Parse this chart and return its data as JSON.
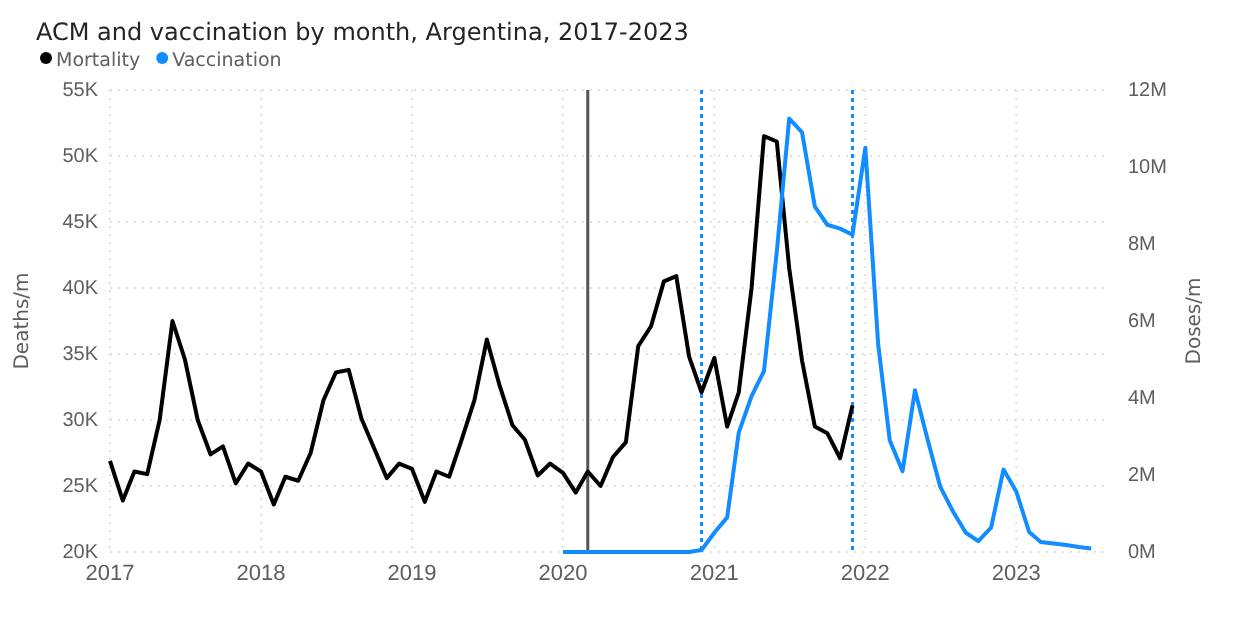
{
  "chart_data": {
    "type": "line",
    "title": "ACM and vaccination by month, Argentina, 2017-2023",
    "ylabel": "Deaths/m",
    "y2label": "Doses/m",
    "legend": "top left",
    "grid": true,
    "marker": "none",
    "line_style": "solid",
    "xlim": [
      "2017-01-01",
      "2023-08-01"
    ],
    "xticks": [
      {
        "value": "2017-01-01",
        "label": "2017"
      },
      {
        "value": "2018-01-01",
        "label": "2018"
      },
      {
        "value": "2019-01-01",
        "label": "2019"
      },
      {
        "value": "2020-01-01",
        "label": "2020"
      },
      {
        "value": "2021-01-01",
        "label": "2021"
      },
      {
        "value": "2022-01-01",
        "label": "2022"
      },
      {
        "value": "2023-01-01",
        "label": "2023"
      }
    ],
    "ylim": [
      20000,
      55000
    ],
    "yticks": [
      {
        "value": 20000,
        "label": "20K"
      },
      {
        "value": 25000,
        "label": "25K"
      },
      {
        "value": 30000,
        "label": "30K"
      },
      {
        "value": 35000,
        "label": "35K"
      },
      {
        "value": 40000,
        "label": "40K"
      },
      {
        "value": 45000,
        "label": "45K"
      },
      {
        "value": 50000,
        "label": "50K"
      },
      {
        "value": 55000,
        "label": "55K"
      }
    ],
    "y2lim": [
      0,
      12000000
    ],
    "y2ticks": [
      {
        "value": 0,
        "label": "0M"
      },
      {
        "value": 2000000,
        "label": "2M"
      },
      {
        "value": 4000000,
        "label": "4M"
      },
      {
        "value": 6000000,
        "label": "6M"
      },
      {
        "value": 8000000,
        "label": "8M"
      },
      {
        "value": 10000000,
        "label": "10M"
      },
      {
        "value": 12000000,
        "label": "12M"
      }
    ],
    "ref_lines": [
      {
        "axis": "x",
        "value": "2020-03",
        "color": "#555555",
        "line_style": "solid"
      },
      {
        "axis": "x",
        "value": "2020-12",
        "color": "#118dff",
        "line_style": "dotted"
      },
      {
        "axis": "x",
        "value": "2021-12",
        "color": "#118dff",
        "line_style": "dotted"
      }
    ],
    "series": [
      {
        "name": "Mortality",
        "color": "#000000",
        "x": [
          "2017-01",
          "2017-02",
          "2017-03",
          "2017-04",
          "2017-05",
          "2017-06",
          "2017-07",
          "2017-08",
          "2017-09",
          "2017-10",
          "2017-11",
          "2017-12",
          "2018-01",
          "2018-02",
          "2018-03",
          "2018-04",
          "2018-05",
          "2018-06",
          "2018-07",
          "2018-08",
          "2018-09",
          "2018-10",
          "2018-11",
          "2018-12",
          "2019-01",
          "2019-02",
          "2019-03",
          "2019-04",
          "2019-05",
          "2019-06",
          "2019-07",
          "2019-08",
          "2019-09",
          "2019-10",
          "2019-11",
          "2019-12",
          "2020-01",
          "2020-02",
          "2020-03",
          "2020-04",
          "2020-05",
          "2020-06",
          "2020-07",
          "2020-08",
          "2020-09",
          "2020-10",
          "2020-11",
          "2020-12",
          "2021-01",
          "2021-02",
          "2021-03",
          "2021-04",
          "2021-05",
          "2021-06",
          "2021-07",
          "2021-08",
          "2021-09",
          "2021-10",
          "2021-11",
          "2021-12"
        ],
        "values": [
          26900,
          23900,
          26100,
          25900,
          30000,
          37500,
          34600,
          30000,
          27400,
          28000,
          25200,
          26700,
          26100,
          23600,
          25700,
          25400,
          27500,
          31500,
          33600,
          33800,
          30100,
          27900,
          25600,
          26700,
          26300,
          23800,
          26100,
          25700,
          28500,
          31500,
          36100,
          32600,
          29600,
          28500,
          25800,
          26700,
          26000,
          24500,
          26100,
          25000,
          27200,
          28300,
          35600,
          37100,
          40500,
          40900,
          34800,
          32100,
          34700,
          29500,
          32100,
          40000,
          51500,
          51100,
          41500,
          34500,
          29500,
          29000,
          27100,
          31100
        ]
      },
      {
        "name": "Vaccination",
        "color": "#118dff",
        "axis": "y2",
        "x": [
          "2020-01",
          "2020-02",
          "2020-03",
          "2020-04",
          "2020-05",
          "2020-06",
          "2020-07",
          "2020-08",
          "2020-09",
          "2020-10",
          "2020-11",
          "2020-12",
          "2021-01",
          "2021-02",
          "2021-03",
          "2021-04",
          "2021-05",
          "2021-06",
          "2021-07",
          "2021-08",
          "2021-09",
          "2021-10",
          "2021-11",
          "2021-12",
          "2022-01",
          "2022-02",
          "2022-03",
          "2022-04",
          "2022-05",
          "2022-06",
          "2022-07",
          "2022-08",
          "2022-09",
          "2022-10",
          "2022-11",
          "2022-12",
          "2023-01",
          "2023-02",
          "2023-03",
          "2023-04",
          "2023-05",
          "2023-06",
          "2023-07"
        ],
        "values": [
          0,
          0,
          0,
          0,
          0,
          0,
          0,
          0,
          0,
          0,
          0,
          50000,
          500000,
          900000,
          3100000,
          4050000,
          4700000,
          7800000,
          11260000,
          10900000,
          8970000,
          8500000,
          8400000,
          8240000,
          10500000,
          5400000,
          2900000,
          2100000,
          4200000,
          2900000,
          1700000,
          1050000,
          500000,
          280000,
          630000,
          2140000,
          1570000,
          520000,
          260000,
          220000,
          180000,
          130000,
          90000
        ]
      }
    ]
  }
}
